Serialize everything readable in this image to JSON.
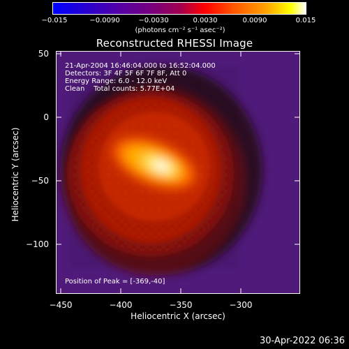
{
  "colorbar": {
    "ticks": [
      "−0.015",
      "−0.0090",
      "−0.0030",
      "0.0030",
      "0.0090",
      "0.015"
    ],
    "tick_values": [
      -0.015,
      -0.009,
      -0.003,
      0.003,
      0.009,
      0.015
    ],
    "units": "(photons cm⁻² s⁻¹ asec⁻²)",
    "range": [
      -0.015,
      0.015
    ]
  },
  "title": "Reconstructed RHESSI Image",
  "axes": {
    "x_title": "Heliocentric X (arcsec)",
    "y_title": "Heliocentric Y (arcsec)",
    "x_ticks": [
      "−450",
      "−400",
      "−350",
      "−300"
    ],
    "x_tick_values": [
      -450,
      -400,
      -350,
      -300
    ],
    "y_ticks": [
      "50",
      "0",
      "−50",
      "−100"
    ],
    "y_tick_values": [
      50,
      0,
      -50,
      -100
    ],
    "xlim": [
      -450,
      -255
    ],
    "ylim": [
      -140,
      53
    ]
  },
  "info": {
    "time_range": "21-Apr-2004 16:46:04.000 to 16:52:04.000",
    "detectors": "Detectors: 3F 4F 5F 6F 7F 8F, Att 0",
    "energy": "Energy Range: 6.0 - 12.0 keV",
    "clean": "Clean    Total counts: 5.77E+04",
    "peak": "Position of Peak = [-369,-40]"
  },
  "peak_position": {
    "x": -369,
    "y": -40
  },
  "footer": "30-Apr-2022 06:36"
}
